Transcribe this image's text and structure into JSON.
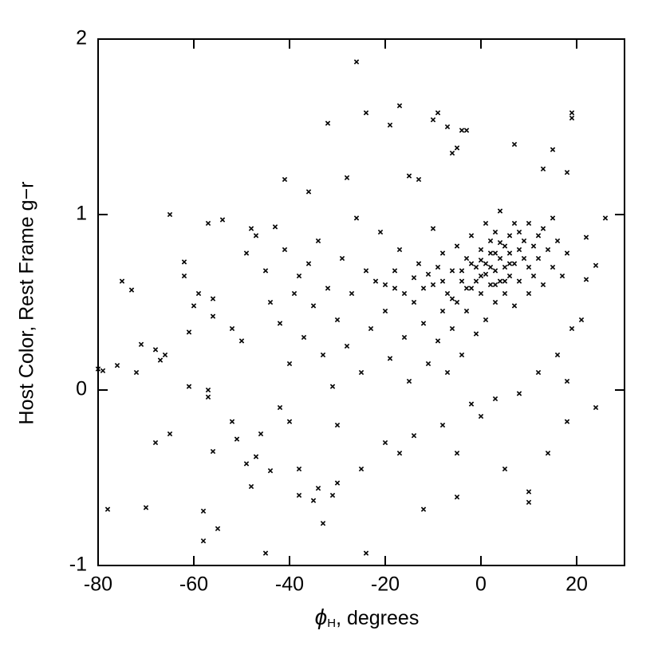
{
  "chart_data": {
    "type": "scatter",
    "x_label": {
      "symbol": "ϕ",
      "subscript": "H",
      "text": ", degrees"
    },
    "y_label": "Host Color, Rest Frame g−r",
    "color": "#000000",
    "xlim": [
      -80,
      30
    ],
    "xticks": [
      -80,
      -60,
      -40,
      -20,
      0,
      20
    ],
    "ylim": [
      -1,
      2
    ],
    "yticks": [
      -1,
      0,
      1,
      2
    ],
    "x": [
      -26,
      -24,
      -17,
      -19,
      -9,
      -10,
      -7,
      -3,
      -4,
      19,
      19,
      -32,
      -41,
      -36,
      -28,
      -13,
      -15,
      -6,
      -5,
      7,
      15,
      13,
      18,
      26,
      22,
      24,
      22,
      21,
      24,
      18,
      14,
      10,
      10,
      5,
      -5,
      -12,
      -24,
      -33,
      -45,
      -58,
      -55,
      -58,
      -70,
      -78,
      -79,
      -80,
      -76,
      -75,
      -73,
      -72,
      -71,
      -68,
      -67,
      -66,
      -65,
      -62,
      -62,
      -61,
      -61,
      -57,
      -54,
      -56,
      -56,
      -59,
      -60,
      -57,
      -57,
      -56,
      -68,
      -65,
      -52,
      -51,
      -49,
      -48,
      -47,
      -46,
      -44,
      -42,
      -40,
      -38,
      -38,
      -35,
      -34,
      -31,
      -30,
      -30,
      -25,
      -20,
      -17,
      -14,
      -8,
      -5,
      -2,
      0,
      3,
      8,
      12,
      16,
      19,
      18,
      -52,
      -50,
      -49,
      -48,
      -47,
      -45,
      -44,
      -43,
      -42,
      -41,
      -40,
      -39,
      -38,
      -37,
      -36,
      -35,
      -34,
      -33,
      -32,
      -31,
      -30,
      -29,
      -28,
      -27,
      -26,
      -25,
      -24,
      -23,
      -22,
      -21,
      -20,
      -19,
      -18,
      -17,
      -16,
      -15,
      -14,
      -13,
      -12,
      -11,
      -10,
      -10,
      -9,
      -8,
      -8,
      -7,
      -7,
      -6,
      -6,
      -5,
      -5,
      -4,
      -4,
      -3,
      -3,
      -2,
      -2,
      -1,
      -1,
      0,
      0,
      0,
      1,
      1,
      1,
      2,
      2,
      2,
      3,
      3,
      3,
      4,
      4,
      4,
      5,
      5,
      5,
      6,
      6,
      6,
      7,
      7,
      7,
      8,
      8,
      8,
      9,
      9,
      10,
      10,
      10,
      11,
      11,
      12,
      12,
      13,
      13,
      14,
      15,
      15,
      16,
      17,
      18,
      -2,
      -1,
      0,
      1,
      2,
      3,
      4,
      5,
      -3,
      -4,
      6,
      3,
      -6,
      -8,
      -9,
      -11,
      -12,
      -14,
      -16,
      -18,
      -20
    ],
    "values": [
      1.87,
      1.58,
      1.62,
      1.51,
      1.58,
      1.54,
      1.5,
      1.48,
      1.48,
      1.58,
      1.55,
      1.52,
      1.2,
      1.13,
      1.21,
      1.2,
      1.22,
      1.35,
      1.38,
      1.4,
      1.37,
      1.26,
      1.24,
      0.98,
      0.87,
      0.71,
      0.63,
      0.4,
      -0.1,
      -0.18,
      -0.36,
      -0.58,
      -0.64,
      -0.45,
      -0.61,
      -0.68,
      -0.93,
      -0.76,
      -0.93,
      -0.86,
      -0.79,
      -0.69,
      -0.67,
      -0.68,
      0.11,
      0.12,
      0.14,
      0.62,
      0.57,
      0.1,
      0.26,
      0.23,
      0.17,
      0.2,
      1.0,
      0.73,
      0.65,
      0.33,
      0.02,
      0.95,
      0.97,
      0.42,
      0.52,
      0.55,
      0.48,
      0.0,
      -0.04,
      -0.35,
      -0.3,
      -0.25,
      -0.18,
      -0.28,
      -0.42,
      -0.55,
      -0.38,
      -0.25,
      -0.46,
      -0.1,
      -0.18,
      -0.45,
      -0.6,
      -0.63,
      -0.56,
      -0.6,
      -0.53,
      -0.2,
      -0.45,
      -0.3,
      -0.36,
      -0.26,
      -0.2,
      -0.36,
      -0.08,
      -0.15,
      -0.05,
      -0.02,
      0.1,
      0.2,
      0.35,
      0.05,
      0.35,
      0.28,
      0.78,
      0.92,
      0.88,
      0.68,
      0.5,
      0.93,
      0.38,
      0.8,
      0.15,
      0.55,
      0.65,
      0.3,
      0.72,
      0.48,
      0.85,
      0.2,
      0.58,
      0.02,
      0.4,
      0.75,
      0.25,
      0.55,
      0.98,
      0.1,
      0.68,
      0.35,
      0.62,
      0.9,
      0.45,
      0.18,
      0.58,
      0.8,
      0.3,
      0.05,
      0.5,
      0.72,
      0.38,
      0.15,
      0.6,
      0.92,
      0.28,
      0.45,
      0.78,
      0.55,
      0.1,
      0.68,
      0.35,
      0.82,
      0.5,
      0.62,
      0.2,
      0.75,
      0.45,
      0.88,
      0.58,
      0.7,
      0.32,
      0.8,
      0.55,
      0.65,
      0.95,
      0.72,
      0.4,
      0.6,
      0.85,
      0.78,
      0.68,
      0.5,
      0.9,
      0.75,
      0.62,
      1.02,
      0.82,
      0.55,
      0.7,
      0.88,
      0.65,
      0.78,
      0.72,
      0.95,
      0.48,
      0.8,
      0.62,
      0.9,
      0.75,
      0.85,
      0.7,
      0.95,
      0.55,
      0.82,
      0.65,
      0.88,
      0.75,
      0.92,
      0.6,
      0.8,
      0.7,
      0.98,
      0.85,
      0.65,
      0.78,
      0.72,
      0.62,
      0.74,
      0.66,
      0.7,
      0.78,
      0.84,
      0.62,
      0.58,
      0.68,
      0.72,
      0.6,
      0.52,
      0.62,
      0.7,
      0.66,
      0.58,
      0.64,
      0.55,
      0.68,
      0.6
    ]
  }
}
